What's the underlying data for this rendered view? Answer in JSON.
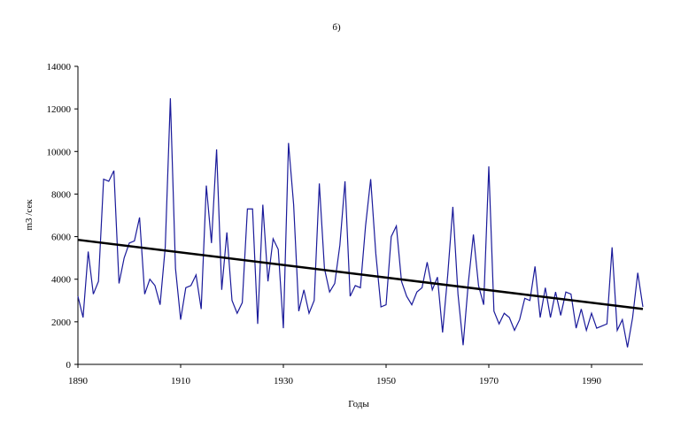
{
  "chart_data": {
    "type": "line",
    "title": "б)",
    "x_label": "Годы",
    "y_label": "m3 /сек",
    "x": [
      1890,
      1891,
      1892,
      1893,
      1894,
      1895,
      1896,
      1897,
      1898,
      1899,
      1900,
      1901,
      1902,
      1903,
      1904,
      1905,
      1906,
      1907,
      1908,
      1909,
      1910,
      1911,
      1912,
      1913,
      1914,
      1915,
      1916,
      1917,
      1918,
      1919,
      1920,
      1921,
      1922,
      1923,
      1924,
      1925,
      1926,
      1927,
      1928,
      1929,
      1930,
      1931,
      1932,
      1933,
      1934,
      1935,
      1936,
      1937,
      1938,
      1939,
      1940,
      1941,
      1942,
      1943,
      1944,
      1945,
      1946,
      1947,
      1948,
      1949,
      1950,
      1951,
      1952,
      1953,
      1954,
      1955,
      1956,
      1957,
      1958,
      1959,
      1960,
      1961,
      1962,
      1963,
      1964,
      1965,
      1966,
      1967,
      1968,
      1969,
      1970,
      1971,
      1972,
      1973,
      1974,
      1975,
      1976,
      1977,
      1978,
      1979,
      1980,
      1981,
      1982,
      1983,
      1984,
      1985,
      1986,
      1987,
      1988,
      1989,
      1990,
      1991,
      1992,
      1993,
      1994,
      1995,
      1996,
      1997,
      1998,
      1999,
      2000
    ],
    "series": [
      {
        "color": "#1a1a9a",
        "values": [
          3200,
          2200,
          5300,
          3300,
          3900,
          8700,
          8600,
          9100,
          3800,
          5000,
          5700,
          5800,
          6900,
          3300,
          4000,
          3700,
          2800,
          5500,
          12500,
          4500,
          2100,
          3600,
          3700,
          4200,
          2600,
          8400,
          5700,
          10100,
          3500,
          6200,
          3000,
          2400,
          2900,
          7300,
          7300,
          1900,
          7500,
          3900,
          5900,
          5400,
          1700,
          10400,
          7500,
          2500,
          3500,
          2400,
          3000,
          8500,
          4500,
          3400,
          3800,
          5600,
          8600,
          3200,
          3700,
          3600,
          6500,
          8700,
          5200,
          2700,
          2800,
          6000,
          6500,
          3900,
          3200,
          2800,
          3400,
          3600,
          4800,
          3500,
          4100,
          1500,
          4200,
          7400,
          3300,
          900,
          3800,
          6100,
          3700,
          2800,
          9300,
          2500,
          1900,
          2400,
          2200,
          1600,
          2100,
          3100,
          3000,
          4600,
          2200,
          3600,
          2200,
          3400,
          2300,
          3400,
          3300,
          1700,
          2600,
          1600,
          2400,
          1700,
          1800,
          1900,
          5500,
          1600,
          2100,
          800,
          2200,
          4300,
          2700
        ]
      },
      {
        "color": "#000000",
        "x": [
          1890,
          2000
        ],
        "values": [
          5850,
          2600
        ]
      }
    ],
    "xlim": [
      1890,
      2000
    ],
    "ylim": [
      0,
      14000
    ],
    "xticks": [
      1890,
      1910,
      1930,
      1950,
      1970,
      1990
    ],
    "yticks": [
      0,
      2000,
      4000,
      6000,
      8000,
      10000,
      12000,
      14000
    ]
  }
}
